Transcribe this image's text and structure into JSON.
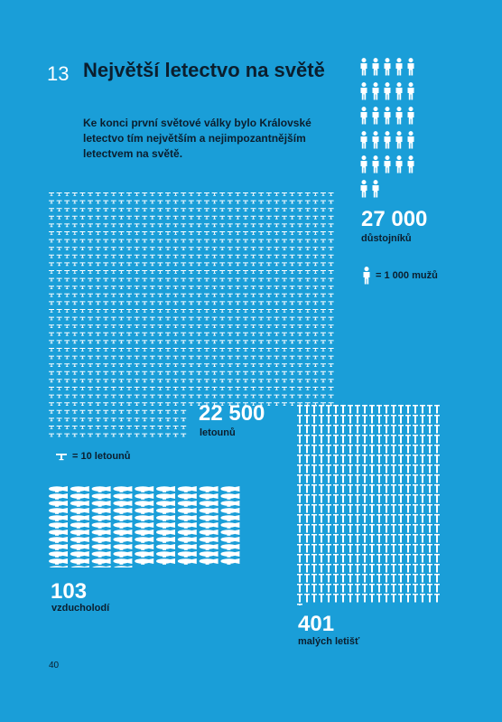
{
  "section_number": "13",
  "title": "Největší letectvo na světě",
  "intro": "Ke konci první světové války bylo Královské letectvo tím největším a nejimpozantnějším letectvem na světě.",
  "officers": {
    "value": "27 000",
    "label": "důstojníků",
    "unit_legend": "= 1 000 mužů",
    "icon": "person-icon",
    "icon_count": 27
  },
  "aircraft": {
    "value": "22 500",
    "label": "letounů",
    "unit_legend": "= 10 letounů",
    "icon": "plane-icon"
  },
  "airships": {
    "value": "103",
    "label": "vzducholodí",
    "icon": "airship-icon",
    "icon_count": 103
  },
  "airfields": {
    "value": "401",
    "label": "malých letišť",
    "icon": "airfield-icon",
    "icon_count": 401
  },
  "page_number": "40",
  "colors": {
    "background": "#1a9ed8",
    "icon": "#ffffff",
    "text_dark": "#0b1e2e"
  }
}
